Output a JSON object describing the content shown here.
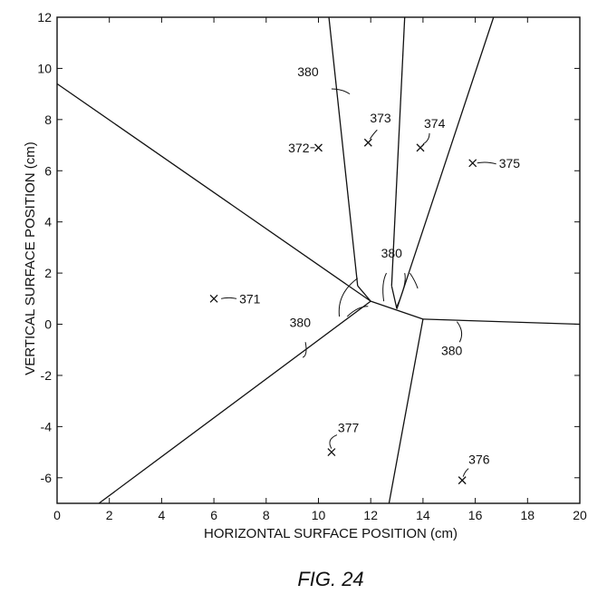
{
  "chart_data": {
    "type": "diagram",
    "xlabel": "HORIZONTAL SURFACE POSITION (cm)",
    "ylabel": "VERTICAL SURFACE POSITION (cm)",
    "xlim": [
      0,
      20
    ],
    "ylim": [
      -7,
      12
    ],
    "x_ticks": [
      "0",
      "2",
      "4",
      "6",
      "8",
      "10",
      "12",
      "14",
      "16",
      "18",
      "20"
    ],
    "y_ticks": [
      "-6",
      "-4",
      "-2",
      "0",
      "2",
      "4",
      "6",
      "8",
      "10",
      "12"
    ],
    "boundary_lines": [
      [
        [
          0,
          9.4
        ],
        [
          12.0,
          0.9
        ]
      ],
      [
        [
          12.0,
          0.9
        ],
        [
          1.6,
          -7.0
        ]
      ],
      [
        [
          12.0,
          0.9
        ],
        [
          14.0,
          0.2
        ]
      ],
      [
        [
          14.0,
          0.2
        ],
        [
          20.0,
          0.0
        ]
      ],
      [
        [
          14.0,
          0.2
        ],
        [
          12.7,
          -7.0
        ]
      ],
      [
        [
          11.5,
          1.5
        ],
        [
          10.4,
          12.0
        ]
      ],
      [
        [
          12.8,
          1.5
        ],
        [
          13.3,
          12.0
        ]
      ],
      [
        [
          13.0,
          0.6
        ],
        [
          16.7,
          12.0
        ]
      ],
      [
        [
          11.5,
          1.5
        ],
        [
          12.0,
          0.9
        ]
      ],
      [
        [
          12.8,
          1.5
        ],
        [
          13.0,
          0.6
        ]
      ]
    ],
    "points": [
      {
        "label": "371",
        "x": 6.0,
        "y": 1.0
      },
      {
        "label": "372",
        "x": 10.0,
        "y": 6.9
      },
      {
        "label": "373",
        "x": 11.9,
        "y": 7.1
      },
      {
        "label": "374",
        "x": 13.9,
        "y": 6.9
      },
      {
        "label": "375",
        "x": 15.9,
        "y": 6.3
      },
      {
        "label": "376",
        "x": 15.5,
        "y": -6.1
      },
      {
        "label": "377",
        "x": 10.5,
        "y": -5.0
      }
    ],
    "boundary_label": "380",
    "caption": "FIG. 24"
  }
}
